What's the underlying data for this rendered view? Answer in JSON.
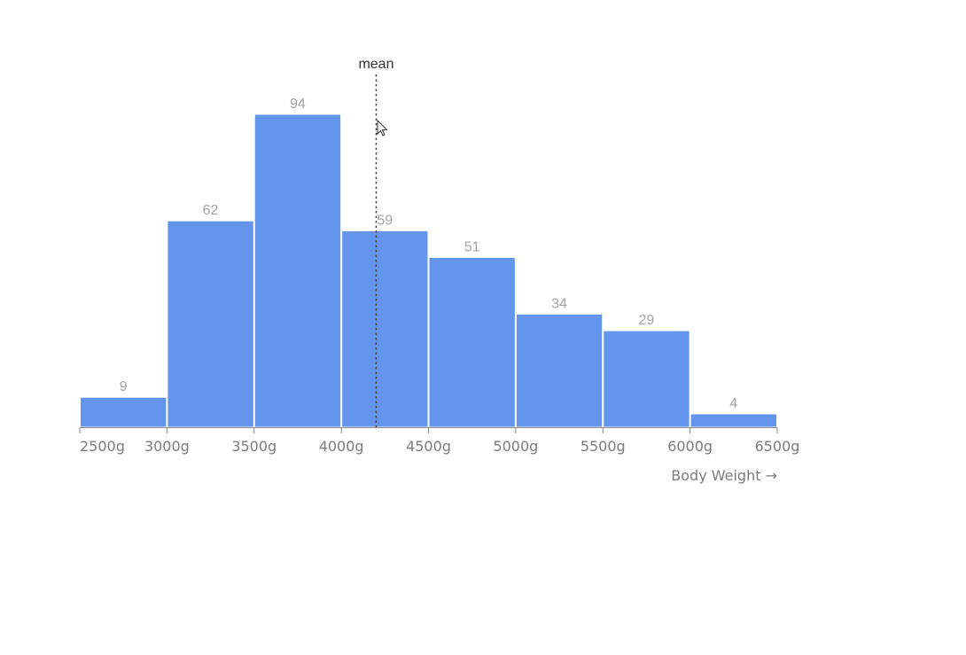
{
  "chart_data": {
    "type": "bar",
    "bins": [
      {
        "x0": 2500,
        "x1": 3000,
        "count": 9
      },
      {
        "x0": 3000,
        "x1": 3500,
        "count": 62
      },
      {
        "x0": 3500,
        "x1": 4000,
        "count": 94
      },
      {
        "x0": 4000,
        "x1": 4500,
        "count": 59
      },
      {
        "x0": 4500,
        "x1": 5000,
        "count": 51
      },
      {
        "x0": 5000,
        "x1": 5500,
        "count": 34
      },
      {
        "x0": 5500,
        "x1": 6000,
        "count": 29
      },
      {
        "x0": 6000,
        "x1": 6500,
        "count": 4
      }
    ],
    "x_ticks": [
      "2500g",
      "3000g",
      "3500g",
      "4000g",
      "4500g",
      "5000g",
      "5500g",
      "6000g",
      "6500g"
    ],
    "xlim": [
      2500,
      6500
    ],
    "ylim": [
      0,
      94
    ],
    "xlabel": "Body Weight →",
    "ylabel": "",
    "mean": {
      "label": "mean",
      "value": 4200
    },
    "grid": false,
    "colors": {
      "bar": "#6495ED",
      "bar_label": "#a3a3a3",
      "tick": "#7b7b7b",
      "mean_line": "#444444"
    }
  }
}
